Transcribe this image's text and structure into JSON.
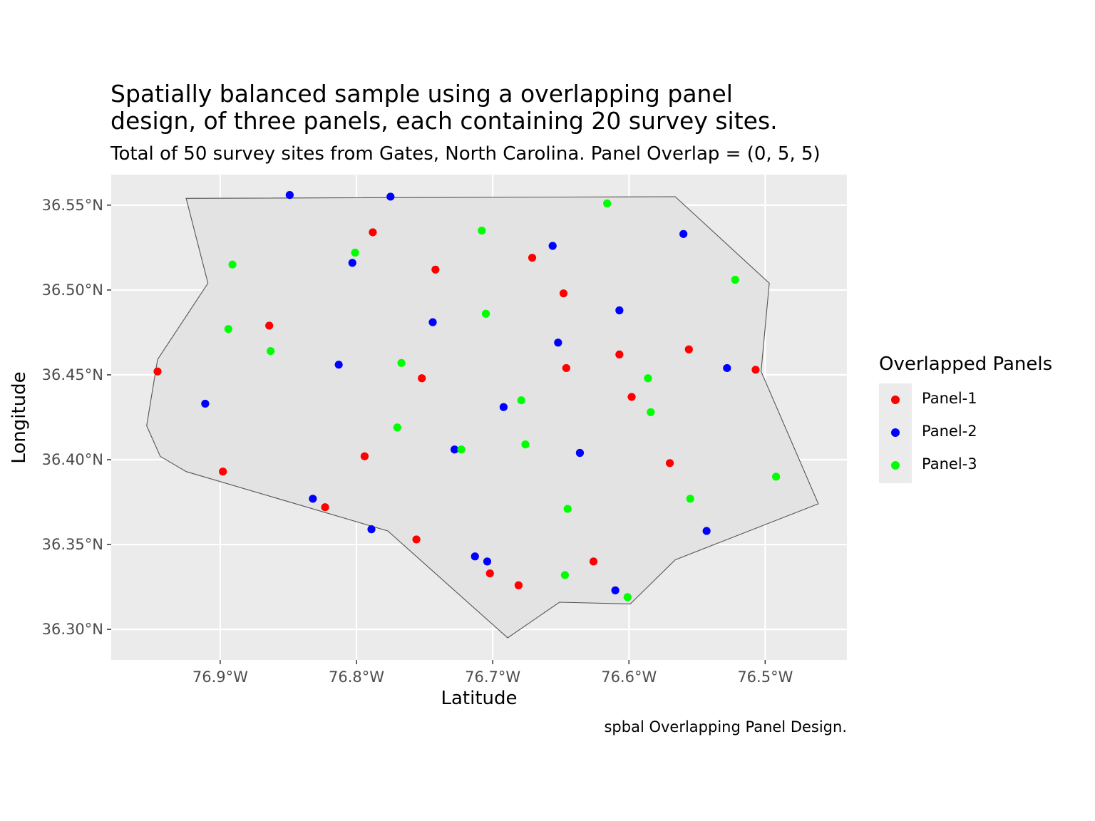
{
  "title_lines": [
    "Spatially balanced sample using a overlapping panel",
    "design, of three panels, each containing 20 survey sites."
  ],
  "subtitle": "Total of 50 survey sites from Gates, North Carolina. Panel Overlap = (0, 5, 5)",
  "caption": "spbal Overlapping Panel Design.",
  "chart_data": {
    "type": "scatter",
    "xlabel": "Latitude",
    "ylabel": "Longitude",
    "xlim": [
      -76.98,
      -76.44
    ],
    "ylim": [
      36.282,
      36.568
    ],
    "x_ticks": [
      -76.9,
      -76.8,
      -76.7,
      -76.6,
      -76.5
    ],
    "x_tick_labels": [
      "76.9°W",
      "76.8°W",
      "76.7°W",
      "76.6°W",
      "76.5°W"
    ],
    "y_ticks": [
      36.3,
      36.35,
      36.4,
      36.45,
      36.5,
      36.55
    ],
    "y_tick_labels": [
      "36.30°N",
      "36.35°N",
      "36.40°N",
      "36.45°N",
      "36.50°N",
      "36.55°N"
    ],
    "grid": true,
    "legend": {
      "title": "Overlapped Panels",
      "position": "right"
    },
    "boundary": [
      [
        -76.925,
        36.554
      ],
      [
        -76.566,
        36.555
      ],
      [
        -76.497,
        36.504
      ],
      [
        -76.503,
        36.452
      ],
      [
        -76.461,
        36.374
      ],
      [
        -76.566,
        36.341
      ],
      [
        -76.599,
        36.315
      ],
      [
        -76.651,
        36.316
      ],
      [
        -76.689,
        36.295
      ],
      [
        -76.777,
        36.358
      ],
      [
        -76.925,
        36.393
      ],
      [
        -76.944,
        36.402
      ],
      [
        -76.954,
        36.42
      ],
      [
        -76.946,
        36.459
      ],
      [
        -76.909,
        36.504
      ]
    ],
    "series": [
      {
        "name": "Panel-1",
        "color": "#ff0000",
        "points": [
          [
            -76.946,
            36.452
          ],
          [
            -76.898,
            36.393
          ],
          [
            -76.864,
            36.479
          ],
          [
            -76.823,
            36.372
          ],
          [
            -76.794,
            36.402
          ],
          [
            -76.788,
            36.534
          ],
          [
            -76.756,
            36.353
          ],
          [
            -76.752,
            36.448
          ],
          [
            -76.742,
            36.512
          ],
          [
            -76.702,
            36.333
          ],
          [
            -76.681,
            36.326
          ],
          [
            -76.671,
            36.519
          ],
          [
            -76.648,
            36.498
          ],
          [
            -76.646,
            36.454
          ],
          [
            -76.626,
            36.34
          ],
          [
            -76.607,
            36.462
          ],
          [
            -76.598,
            36.437
          ],
          [
            -76.57,
            36.398
          ],
          [
            -76.556,
            36.465
          ],
          [
            -76.507,
            36.453
          ]
        ]
      },
      {
        "name": "Panel-2",
        "color": "#0000ff",
        "points": [
          [
            -76.911,
            36.433
          ],
          [
            -76.849,
            36.556
          ],
          [
            -76.832,
            36.377
          ],
          [
            -76.813,
            36.456
          ],
          [
            -76.803,
            36.516
          ],
          [
            -76.789,
            36.359
          ],
          [
            -76.775,
            36.555
          ],
          [
            -76.744,
            36.481
          ],
          [
            -76.728,
            36.406
          ],
          [
            -76.713,
            36.343
          ],
          [
            -76.704,
            36.34
          ],
          [
            -76.692,
            36.431
          ],
          [
            -76.656,
            36.526
          ],
          [
            -76.652,
            36.469
          ],
          [
            -76.636,
            36.404
          ],
          [
            -76.61,
            36.323
          ],
          [
            -76.607,
            36.488
          ],
          [
            -76.56,
            36.533
          ],
          [
            -76.543,
            36.358
          ],
          [
            -76.528,
            36.454
          ]
        ]
      },
      {
        "name": "Panel-3",
        "color": "#00ff00",
        "points": [
          [
            -76.891,
            36.515
          ],
          [
            -76.894,
            36.477
          ],
          [
            -76.863,
            36.464
          ],
          [
            -76.801,
            36.522
          ],
          [
            -76.767,
            36.457
          ],
          [
            -76.77,
            36.419
          ],
          [
            -76.723,
            36.406
          ],
          [
            -76.708,
            36.535
          ],
          [
            -76.705,
            36.486
          ],
          [
            -76.679,
            36.435
          ],
          [
            -76.676,
            36.409
          ],
          [
            -76.647,
            36.332
          ],
          [
            -76.645,
            36.371
          ],
          [
            -76.616,
            36.551
          ],
          [
            -76.601,
            36.319
          ],
          [
            -76.586,
            36.448
          ],
          [
            -76.584,
            36.428
          ],
          [
            -76.555,
            36.377
          ],
          [
            -76.522,
            36.506
          ],
          [
            -76.492,
            36.39
          ]
        ]
      }
    ]
  }
}
